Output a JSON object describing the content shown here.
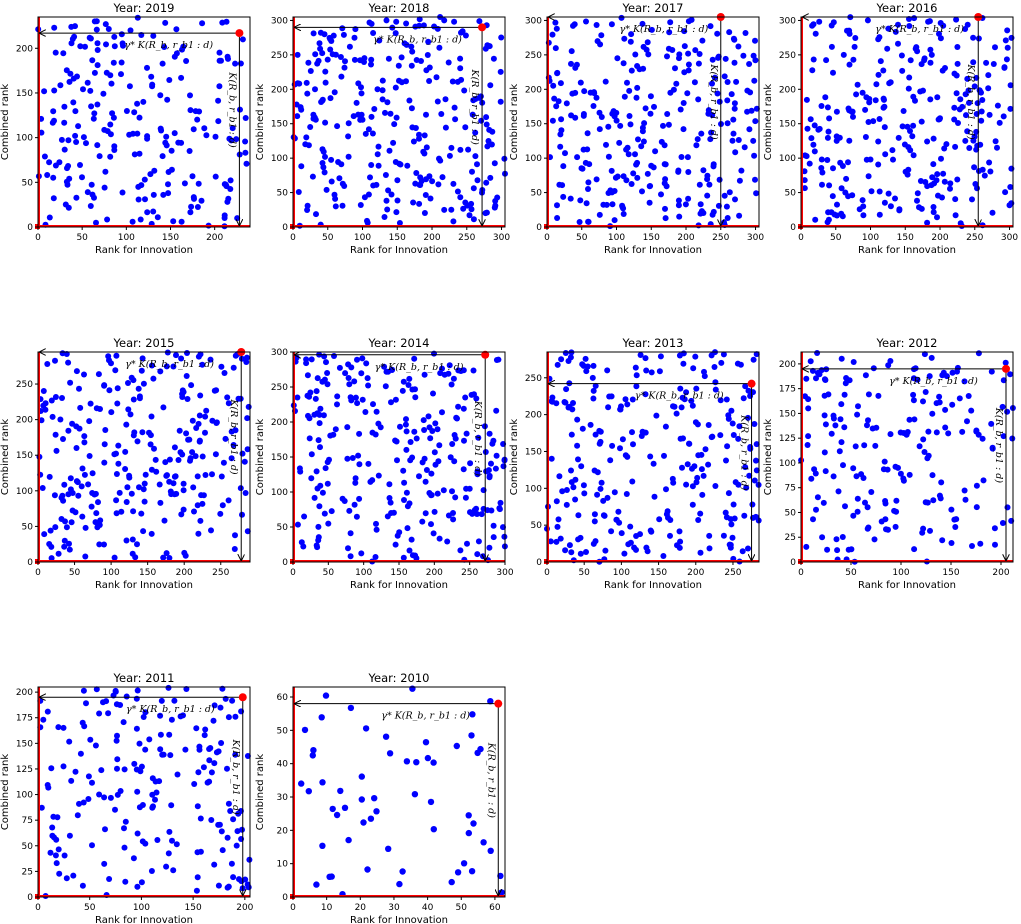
{
  "figure": {
    "xlabel": "Rank for Innovation",
    "ylabel": "Combined rank",
    "horizontal_annotation": "γ* K(R_b, r_b1 : d)",
    "vertical_annotation": "K(R_b, r_b1 : d)",
    "point_color": "#0000ff",
    "highlight_color": "#ff0000",
    "axis_line_color": "#ff0000"
  },
  "chart_data": [
    {
      "type": "scatter",
      "title": "Year: 2019",
      "xlabel": "Rank for Innovation",
      "ylabel": "Combined rank",
      "xlim": [
        0,
        240
      ],
      "ylim": [
        0,
        235
      ],
      "xticks": [
        0,
        50,
        100,
        150,
        200
      ],
      "yticks": [
        0,
        50,
        100,
        150,
        200
      ],
      "n_points": 230,
      "highlight": [
        228,
        217
      ],
      "seed": 2019
    },
    {
      "type": "scatter",
      "title": "Year: 2018",
      "xlabel": "Rank for Innovation",
      "ylabel": "Combined rank",
      "xlim": [
        0,
        305
      ],
      "ylim": [
        0,
        305
      ],
      "xticks": [
        0,
        50,
        100,
        150,
        200,
        250,
        300
      ],
      "yticks": [
        0,
        50,
        100,
        150,
        200,
        250,
        300
      ],
      "n_points": 290,
      "highlight": [
        272,
        290
      ],
      "seed": 2018
    },
    {
      "type": "scatter",
      "title": "Year: 2017",
      "xlabel": "Rank for Innovation",
      "ylabel": "Combined rank",
      "xlim": [
        0,
        305
      ],
      "ylim": [
        0,
        305
      ],
      "xticks": [
        0,
        50,
        100,
        150,
        200,
        250,
        300
      ],
      "yticks": [
        0,
        50,
        100,
        150,
        200,
        250,
        300
      ],
      "n_points": 290,
      "highlight": [
        250,
        305
      ],
      "seed": 2017
    },
    {
      "type": "scatter",
      "title": "Year: 2016",
      "xlabel": "Rank for Innovation",
      "ylabel": "Combined rank",
      "xlim": [
        0,
        305
      ],
      "ylim": [
        0,
        305
      ],
      "xticks": [
        0,
        50,
        100,
        150,
        200,
        250,
        300
      ],
      "yticks": [
        0,
        50,
        100,
        150,
        200,
        250,
        300
      ],
      "n_points": 290,
      "highlight": [
        255,
        305
      ],
      "seed": 2016
    },
    {
      "type": "scatter",
      "title": "Year: 2015",
      "xlabel": "Rank for Innovation",
      "ylabel": "Combined rank",
      "xlim": [
        0,
        290
      ],
      "ylim": [
        0,
        295
      ],
      "xticks": [
        0,
        50,
        100,
        150,
        200,
        250
      ],
      "yticks": [
        0,
        50,
        100,
        150,
        200,
        250
      ],
      "n_points": 280,
      "highlight": [
        278,
        295
      ],
      "seed": 2015
    },
    {
      "type": "scatter",
      "title": "Year: 2014",
      "xlabel": "Rank for Innovation",
      "ylabel": "Combined rank",
      "xlim": [
        0,
        300
      ],
      "ylim": [
        0,
        300
      ],
      "xticks": [
        0,
        50,
        100,
        150,
        200,
        250,
        300
      ],
      "yticks": [
        0,
        50,
        100,
        150,
        200,
        250,
        300
      ],
      "n_points": 285,
      "highlight": [
        272,
        296
      ],
      "seed": 2014
    },
    {
      "type": "scatter",
      "title": "Year: 2013",
      "xlabel": "Rank for Innovation",
      "ylabel": "Combined rank",
      "xlim": [
        0,
        285
      ],
      "ylim": [
        0,
        285
      ],
      "xticks": [
        0,
        50,
        100,
        150,
        200,
        250
      ],
      "yticks": [
        0,
        50,
        100,
        150,
        200,
        250
      ],
      "n_points": 270,
      "highlight": [
        275,
        242
      ],
      "seed": 2013
    },
    {
      "type": "scatter",
      "title": "Year: 2012",
      "xlabel": "Rank for Innovation",
      "ylabel": "Combined rank",
      "xlim": [
        0,
        212
      ],
      "ylim": [
        0,
        212
      ],
      "xticks": [
        0,
        50,
        100,
        150,
        200
      ],
      "yticks": [
        0,
        25,
        50,
        75,
        100,
        125,
        150,
        175,
        200
      ],
      "n_points": 200,
      "highlight": [
        205,
        195
      ],
      "seed": 2012
    },
    {
      "type": "scatter",
      "title": "Year: 2011",
      "xlabel": "Rank for Innovation",
      "ylabel": "Combined rank",
      "xlim": [
        0,
        205
      ],
      "ylim": [
        0,
        205
      ],
      "xticks": [
        0,
        50,
        100,
        150,
        200
      ],
      "yticks": [
        0,
        25,
        50,
        75,
        100,
        125,
        150,
        175,
        200
      ],
      "n_points": 195,
      "highlight": [
        198,
        195
      ],
      "seed": 2011
    },
    {
      "type": "scatter",
      "title": "Year: 2010",
      "xlabel": "Rank for Innovation",
      "ylabel": "Combined rank",
      "xlim": [
        0,
        63
      ],
      "ylim": [
        0,
        63
      ],
      "xticks": [
        0,
        10,
        20,
        30,
        40,
        50,
        60
      ],
      "yticks": [
        0,
        10,
        20,
        30,
        40,
        50,
        60
      ],
      "n_points": 58,
      "highlight": [
        61,
        58
      ],
      "seed": 2010
    }
  ]
}
